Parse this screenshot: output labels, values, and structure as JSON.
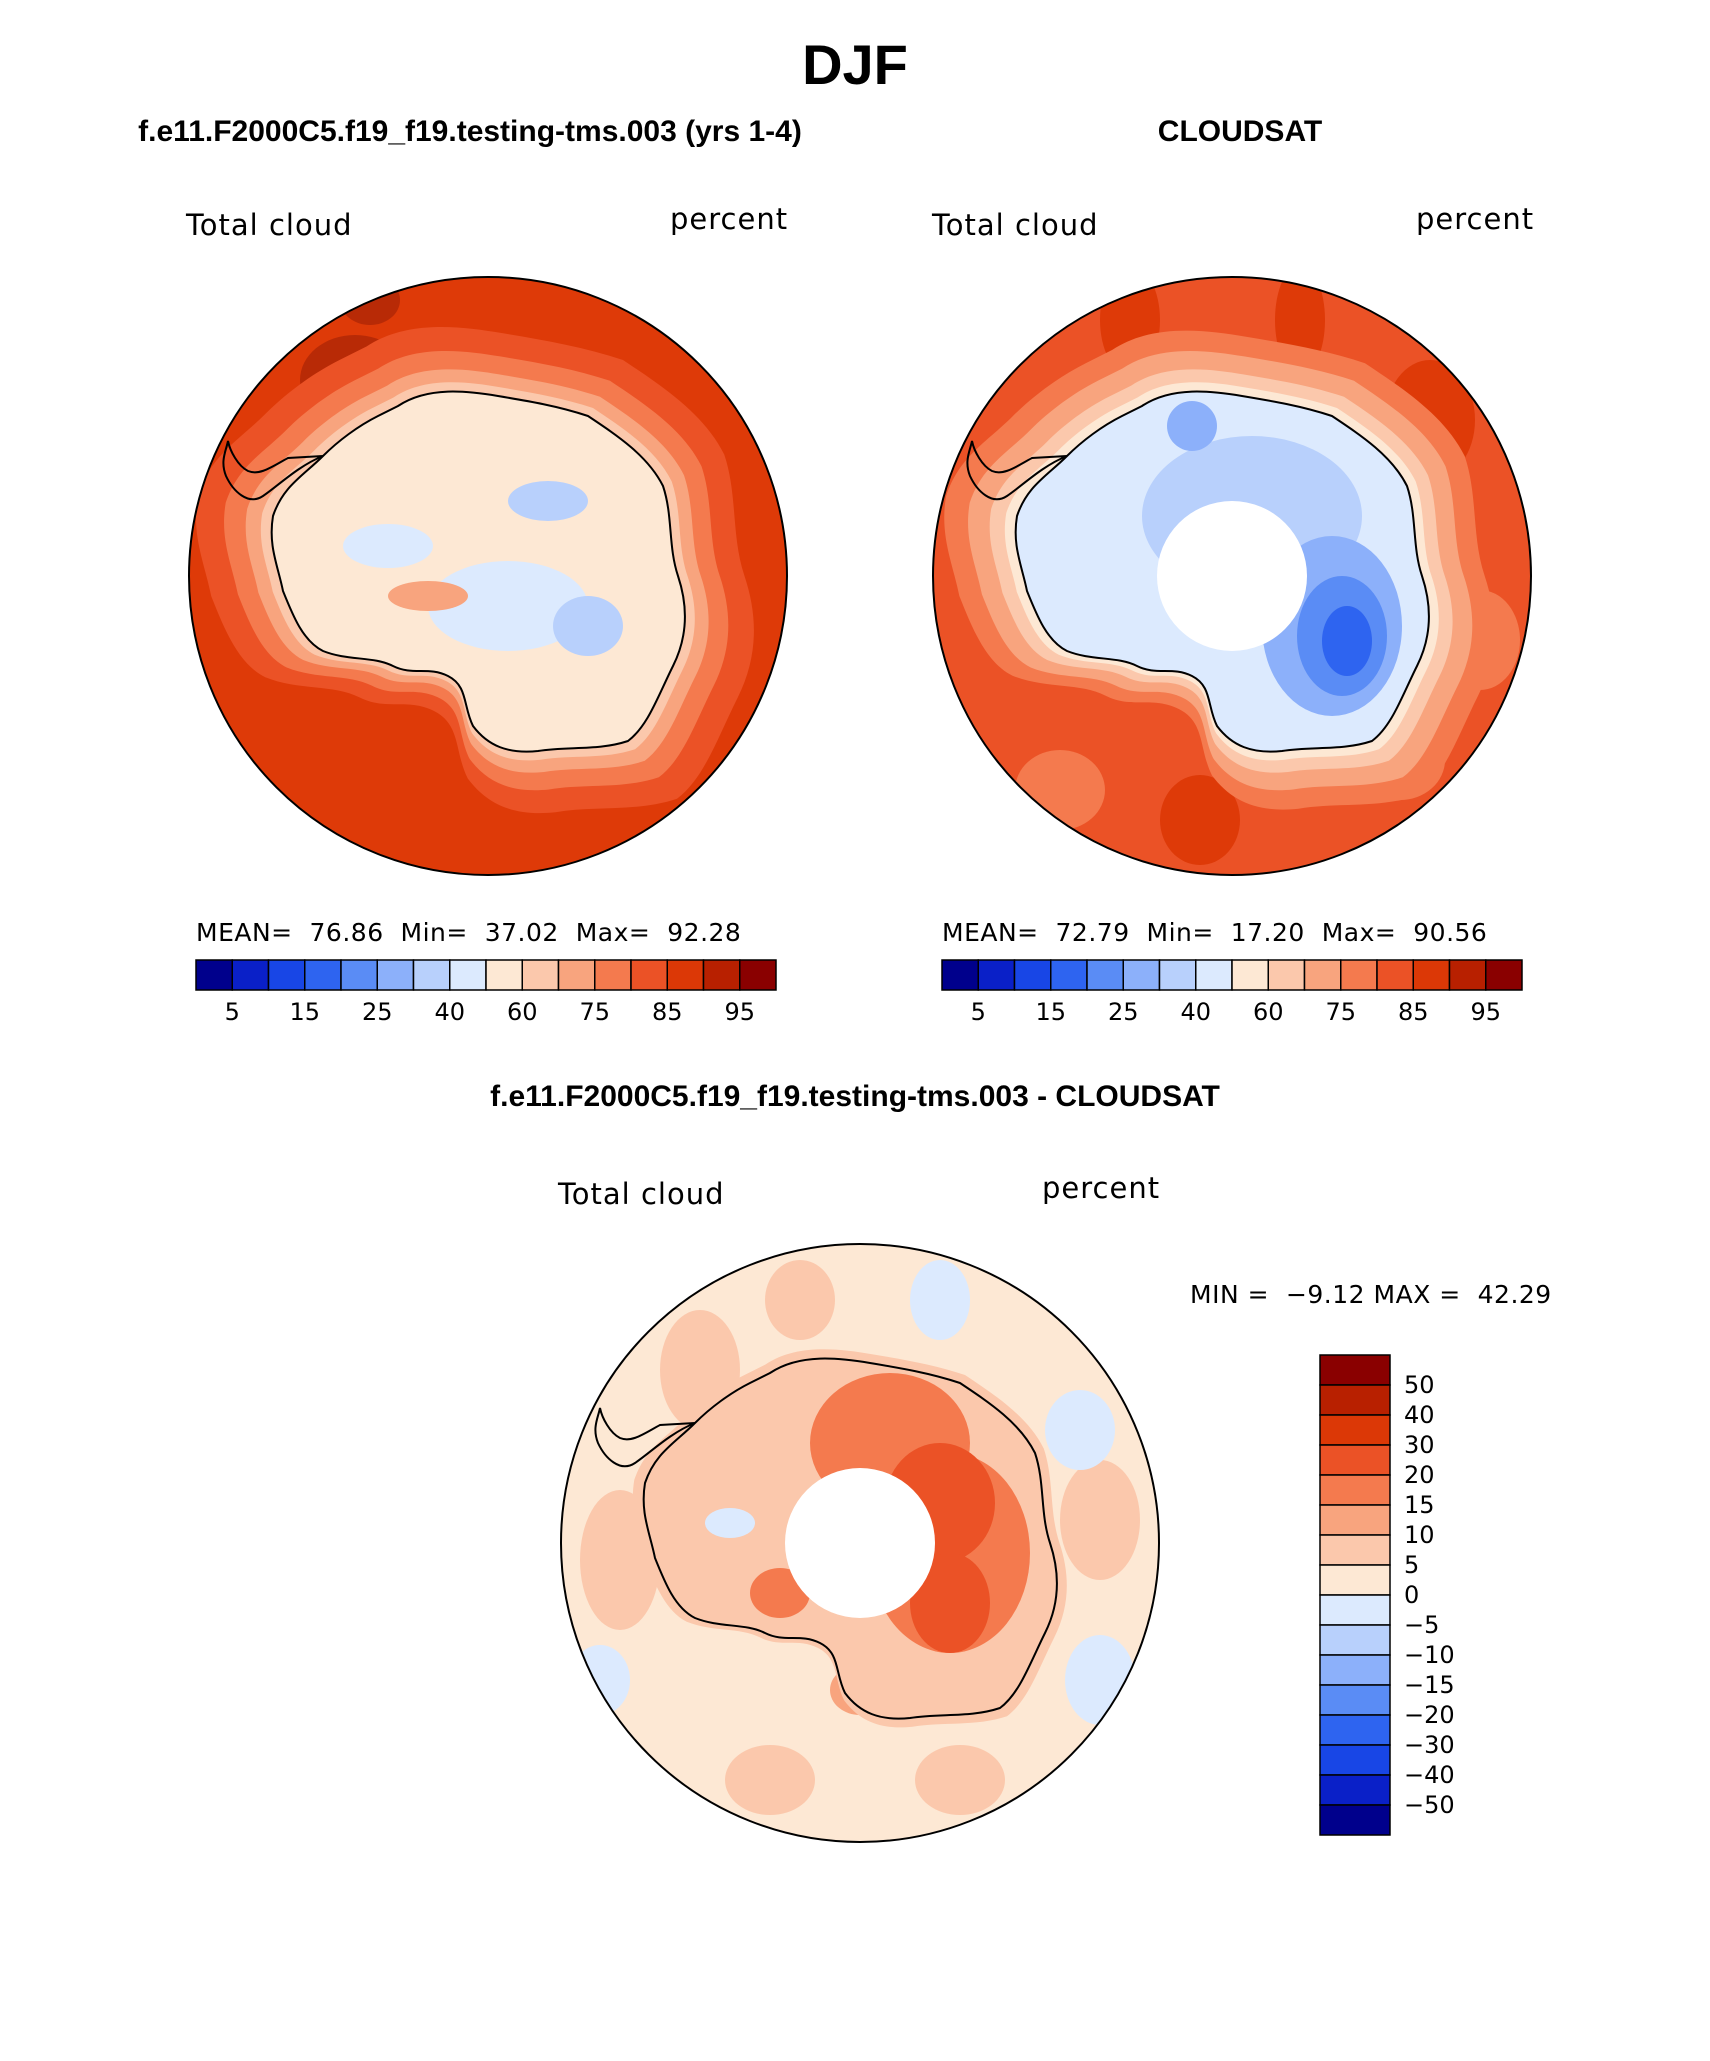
{
  "title": "DJF",
  "panels": [
    {
      "case": "f.e11.F2000C5.f19_f19.testing-tms.003 (yrs 1-4)",
      "variable": "Total cloud",
      "units": "percent",
      "stats": {
        "mean_label": "MEAN=",
        "mean": "76.86",
        "min_label": "Min=",
        "min": "37.02",
        "max_label": "Max=",
        "max": "92.28"
      }
    },
    {
      "case": "CLOUDSAT",
      "variable": "Total cloud",
      "units": "percent",
      "stats": {
        "mean_label": "MEAN=",
        "mean": "72.79",
        "min_label": "Min=",
        "min": "17.20",
        "max_label": "Max=",
        "max": "90.56"
      }
    },
    {
      "case": "f.e11.F2000C5.f19_f19.testing-tms.003 - CLOUDSAT",
      "variable": "Total cloud",
      "units": "percent",
      "stats": {
        "min_label": "MIN =",
        "min": "−9.12",
        "max_label": "MAX =",
        "max": "42.29"
      }
    }
  ],
  "colorbar_top": {
    "colors": [
      "#00008c",
      "#0a20c8",
      "#1846e6",
      "#2e64f0",
      "#5a8cf5",
      "#8cb0fa",
      "#b8d0fc",
      "#dceafe",
      "#fde8d4",
      "#fbc8ac",
      "#f8a47e",
      "#f47a4e",
      "#eb5226",
      "#dc3806",
      "#b82000",
      "#8a0000"
    ],
    "tick_labels": [
      "5",
      "15",
      "25",
      "40",
      "60",
      "75",
      "85",
      "95"
    ]
  },
  "colorbar_diff": {
    "colors": [
      "#00008c",
      "#0a20c8",
      "#1846e6",
      "#2e64f0",
      "#5a8cf5",
      "#8cb0fa",
      "#b8d0fc",
      "#dceafe",
      "#fde8d4",
      "#fbc8ac",
      "#f8a47e",
      "#f47a4e",
      "#eb5226",
      "#dc3806",
      "#b82000",
      "#8a0000"
    ],
    "tick_labels": [
      "50",
      "40",
      "30",
      "20",
      "15",
      "10",
      "5",
      "0",
      "−5",
      "−10",
      "−15",
      "−20",
      "−30",
      "−40",
      "−50"
    ]
  },
  "map_colors": {
    "ocean_model": "#de3a08",
    "ocean_model_dark": "#b82a06",
    "coast_light": "#f47a4e",
    "coast_lighter": "#f8a47e",
    "coast_pale": "#fbc8ac",
    "land_pale": "#fde8d4",
    "land_blue1": "#dceafe",
    "land_blue2": "#b8d0fc",
    "land_blue3": "#8cb0fa",
    "land_blue4": "#5a8cf5",
    "land_blue5": "#2e64f0",
    "ocean_obs": "#eb5226",
    "diff_bg": "#fde8d4",
    "diff_peach": "#fbc8ac",
    "diff_blue": "#dceafe"
  }
}
